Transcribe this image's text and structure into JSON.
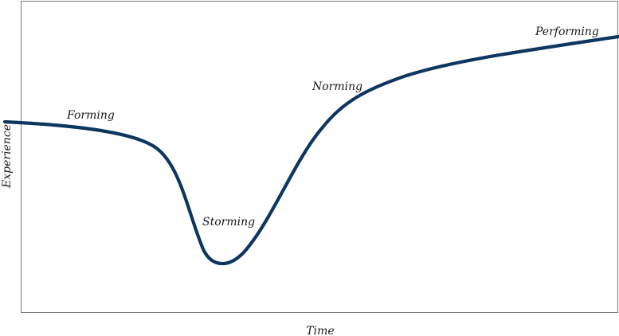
{
  "chart_data": {
    "type": "line",
    "title": "",
    "xlabel": "Time",
    "ylabel": "Experience",
    "grid": false,
    "line_color": "#0d3660",
    "stages": [
      {
        "label": "Forming"
      },
      {
        "label": "Storming"
      },
      {
        "label": "Norming"
      },
      {
        "label": "Performing"
      }
    ]
  }
}
